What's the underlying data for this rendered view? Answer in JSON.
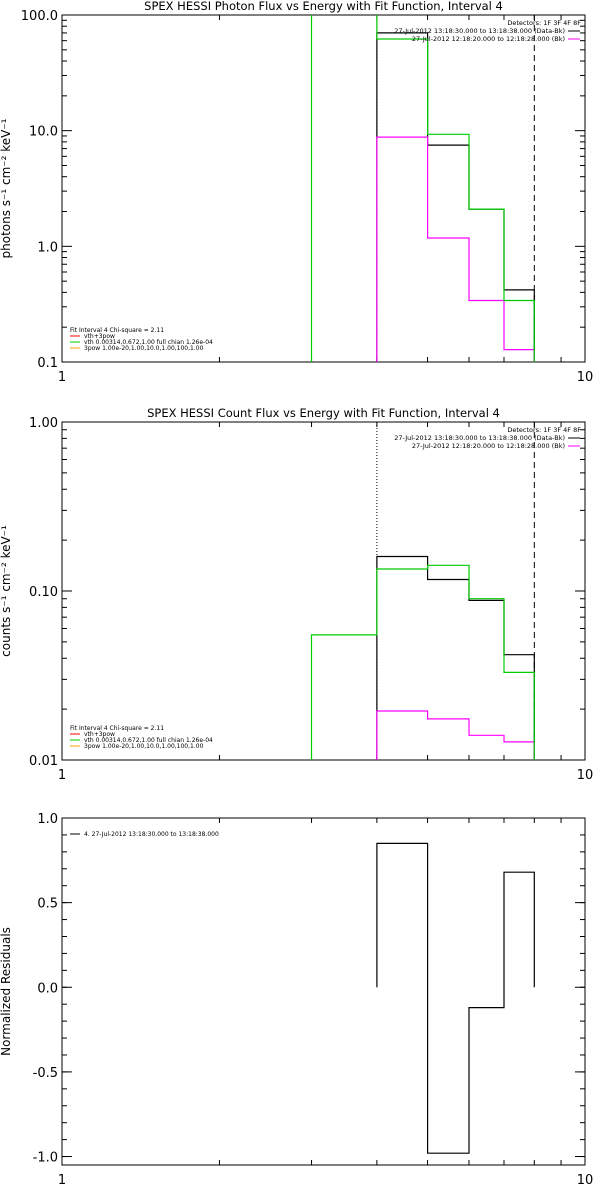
{
  "chart_data": [
    {
      "type": "line",
      "title": "SPEX HESSI Photon Flux vs Energy with Fit Function, Interval 4",
      "ylabel": "photons s⁻¹ cm⁻² keV⁻¹",
      "xscale": "log",
      "yscale": "log",
      "xlim": [
        1,
        10
      ],
      "ylim": [
        0.1,
        100
      ],
      "xticks": [
        {
          "v": 1,
          "t": "1"
        },
        {
          "v": 10,
          "t": "10"
        }
      ],
      "yticks": [
        {
          "v": 0.1,
          "t": "0.1"
        },
        {
          "v": 1,
          "t": "1.0"
        },
        {
          "v": 10,
          "t": "10.0"
        },
        {
          "v": 100,
          "t": "100.0"
        }
      ],
      "vlines": [
        {
          "x": 4,
          "style": "dotted",
          "color": "#000000"
        },
        {
          "x": 8,
          "style": "dashed",
          "color": "#000000"
        }
      ],
      "legend_right": {
        "header": "Detectors: 1F 3F 4F 8F",
        "entries": [
          {
            "label": "27-Jul-2012 13:18:30.000 to 13:18:38.000 (Data-Bk)",
            "color": "#000000"
          },
          {
            "label": "27-Jul-2012 12:18:20.000 to 12:18:28.000 (Bk)",
            "color": "#ff00ff"
          }
        ]
      },
      "legend_left": {
        "header": "Fit Interval 4   Chi-square = 2.11",
        "entries": [
          {
            "label": "vth+3pow",
            "color": "#ff0000"
          },
          {
            "label": "vth 0.00314,0.672,1.00  full chian 1.26e-04",
            "color": "#00cc00"
          },
          {
            "label": "3pow 1.00e-20,1.00,10.0,1.00,100,1.00",
            "color": "#ffa500"
          }
        ]
      },
      "series": [
        {
          "name": "Data-Bk",
          "color": "#000000",
          "edges": [
            4,
            5,
            6,
            7,
            8
          ],
          "values": [
            70,
            7.5,
            2.1,
            0.42
          ]
        },
        {
          "name": "Bk",
          "color": "#ff00ff",
          "edges": [
            4,
            5,
            6,
            7,
            8
          ],
          "values": [
            8.8,
            1.18,
            0.34,
            0.128
          ]
        },
        {
          "name": "vth 0.00314,0.672,1.00  full chian 1.26e-04",
          "color": "#00cc00",
          "edges": [
            3,
            4,
            5,
            6,
            7,
            8
          ],
          "values": [
            2000,
            62,
            9.3,
            2.1,
            0.34
          ]
        }
      ]
    },
    {
      "type": "line",
      "title": "SPEX HESSI Count Flux vs Energy with Fit Function, Interval 4",
      "ylabel": "counts s⁻¹ cm⁻² keV⁻¹",
      "xscale": "log",
      "yscale": "log",
      "xlim": [
        1,
        10
      ],
      "ylim": [
        0.01,
        1
      ],
      "xticks": [
        {
          "v": 1,
          "t": "1"
        },
        {
          "v": 10,
          "t": "10"
        }
      ],
      "yticks": [
        {
          "v": 0.01,
          "t": "0.01"
        },
        {
          "v": 0.1,
          "t": "0.10"
        },
        {
          "v": 1,
          "t": "1.00"
        }
      ],
      "vlines": [
        {
          "x": 4,
          "style": "dotted",
          "color": "#000000"
        },
        {
          "x": 8,
          "style": "dashed",
          "color": "#000000"
        }
      ],
      "legend_right": {
        "header": "Detectors: 1F 3F 4F 8F",
        "entries": [
          {
            "label": "27-Jul-2012 13:18:30.000 to 13:18:38.000 (Data-Bk)",
            "color": "#000000"
          },
          {
            "label": "27-Jul-2012 12:18:20.000 to 12:18:28.000 (Bk)",
            "color": "#ff00ff"
          }
        ]
      },
      "legend_left": {
        "header": "Fit Interval 4   Chi-square = 2.11",
        "entries": [
          {
            "label": "vth+3pow",
            "color": "#ff0000"
          },
          {
            "label": "vth 0.00314,0.672,1.00  full chian 1.26e-04",
            "color": "#00cc00"
          },
          {
            "label": "3pow 1.00e-20,1.00,10.0,1.00,100,1.00",
            "color": "#ffa500"
          }
        ]
      },
      "series": [
        {
          "name": "Data-Bk",
          "color": "#000000",
          "edges": [
            4,
            5,
            6,
            7,
            8
          ],
          "values": [
            0.16,
            0.117,
            0.088,
            0.042
          ]
        },
        {
          "name": "Bk",
          "color": "#ff00ff",
          "edges": [
            4,
            5,
            6,
            7,
            8
          ],
          "values": [
            0.0195,
            0.0175,
            0.014,
            0.0128
          ]
        },
        {
          "name": "vth 0.00314,0.672,1.00  full chian 1.26e-04",
          "color": "#00cc00",
          "edges": [
            3,
            4,
            5,
            6,
            7,
            8
          ],
          "values": [
            0.055,
            0.135,
            0.142,
            0.09,
            0.033
          ]
        }
      ]
    },
    {
      "type": "line",
      "title": "",
      "ylabel": "Normalized Residuals",
      "xscale": "log",
      "yscale": "linear",
      "xlim": [
        1,
        10
      ],
      "ylim": [
        -1.05,
        1.0
      ],
      "xticks": [
        {
          "v": 1,
          "t": "1"
        },
        {
          "v": 10,
          "t": "10"
        }
      ],
      "yticks": [
        {
          "v": 1,
          "t": "1.0"
        },
        {
          "v": 0.5,
          "t": "0.5"
        },
        {
          "v": 0,
          "t": "0.0"
        },
        {
          "v": -0.5,
          "t": "-0.5"
        },
        {
          "v": -1,
          "t": "-1.0"
        }
      ],
      "vlines": [],
      "legend_left": {
        "header": "",
        "entries": [
          {
            "label": "4. 27-Jul-2012 13:18:30.000 to 13:18:38.000",
            "color": "#000000"
          }
        ]
      },
      "series": [
        {
          "name": "4. 27-Jul-2012 13:18:30.000 to 13:18:38.000",
          "color": "#000000",
          "edges": [
            4,
            5,
            6,
            7,
            8
          ],
          "values": [
            0.85,
            -0.98,
            -0.12,
            0.68
          ],
          "baseline": 0
        }
      ]
    }
  ]
}
